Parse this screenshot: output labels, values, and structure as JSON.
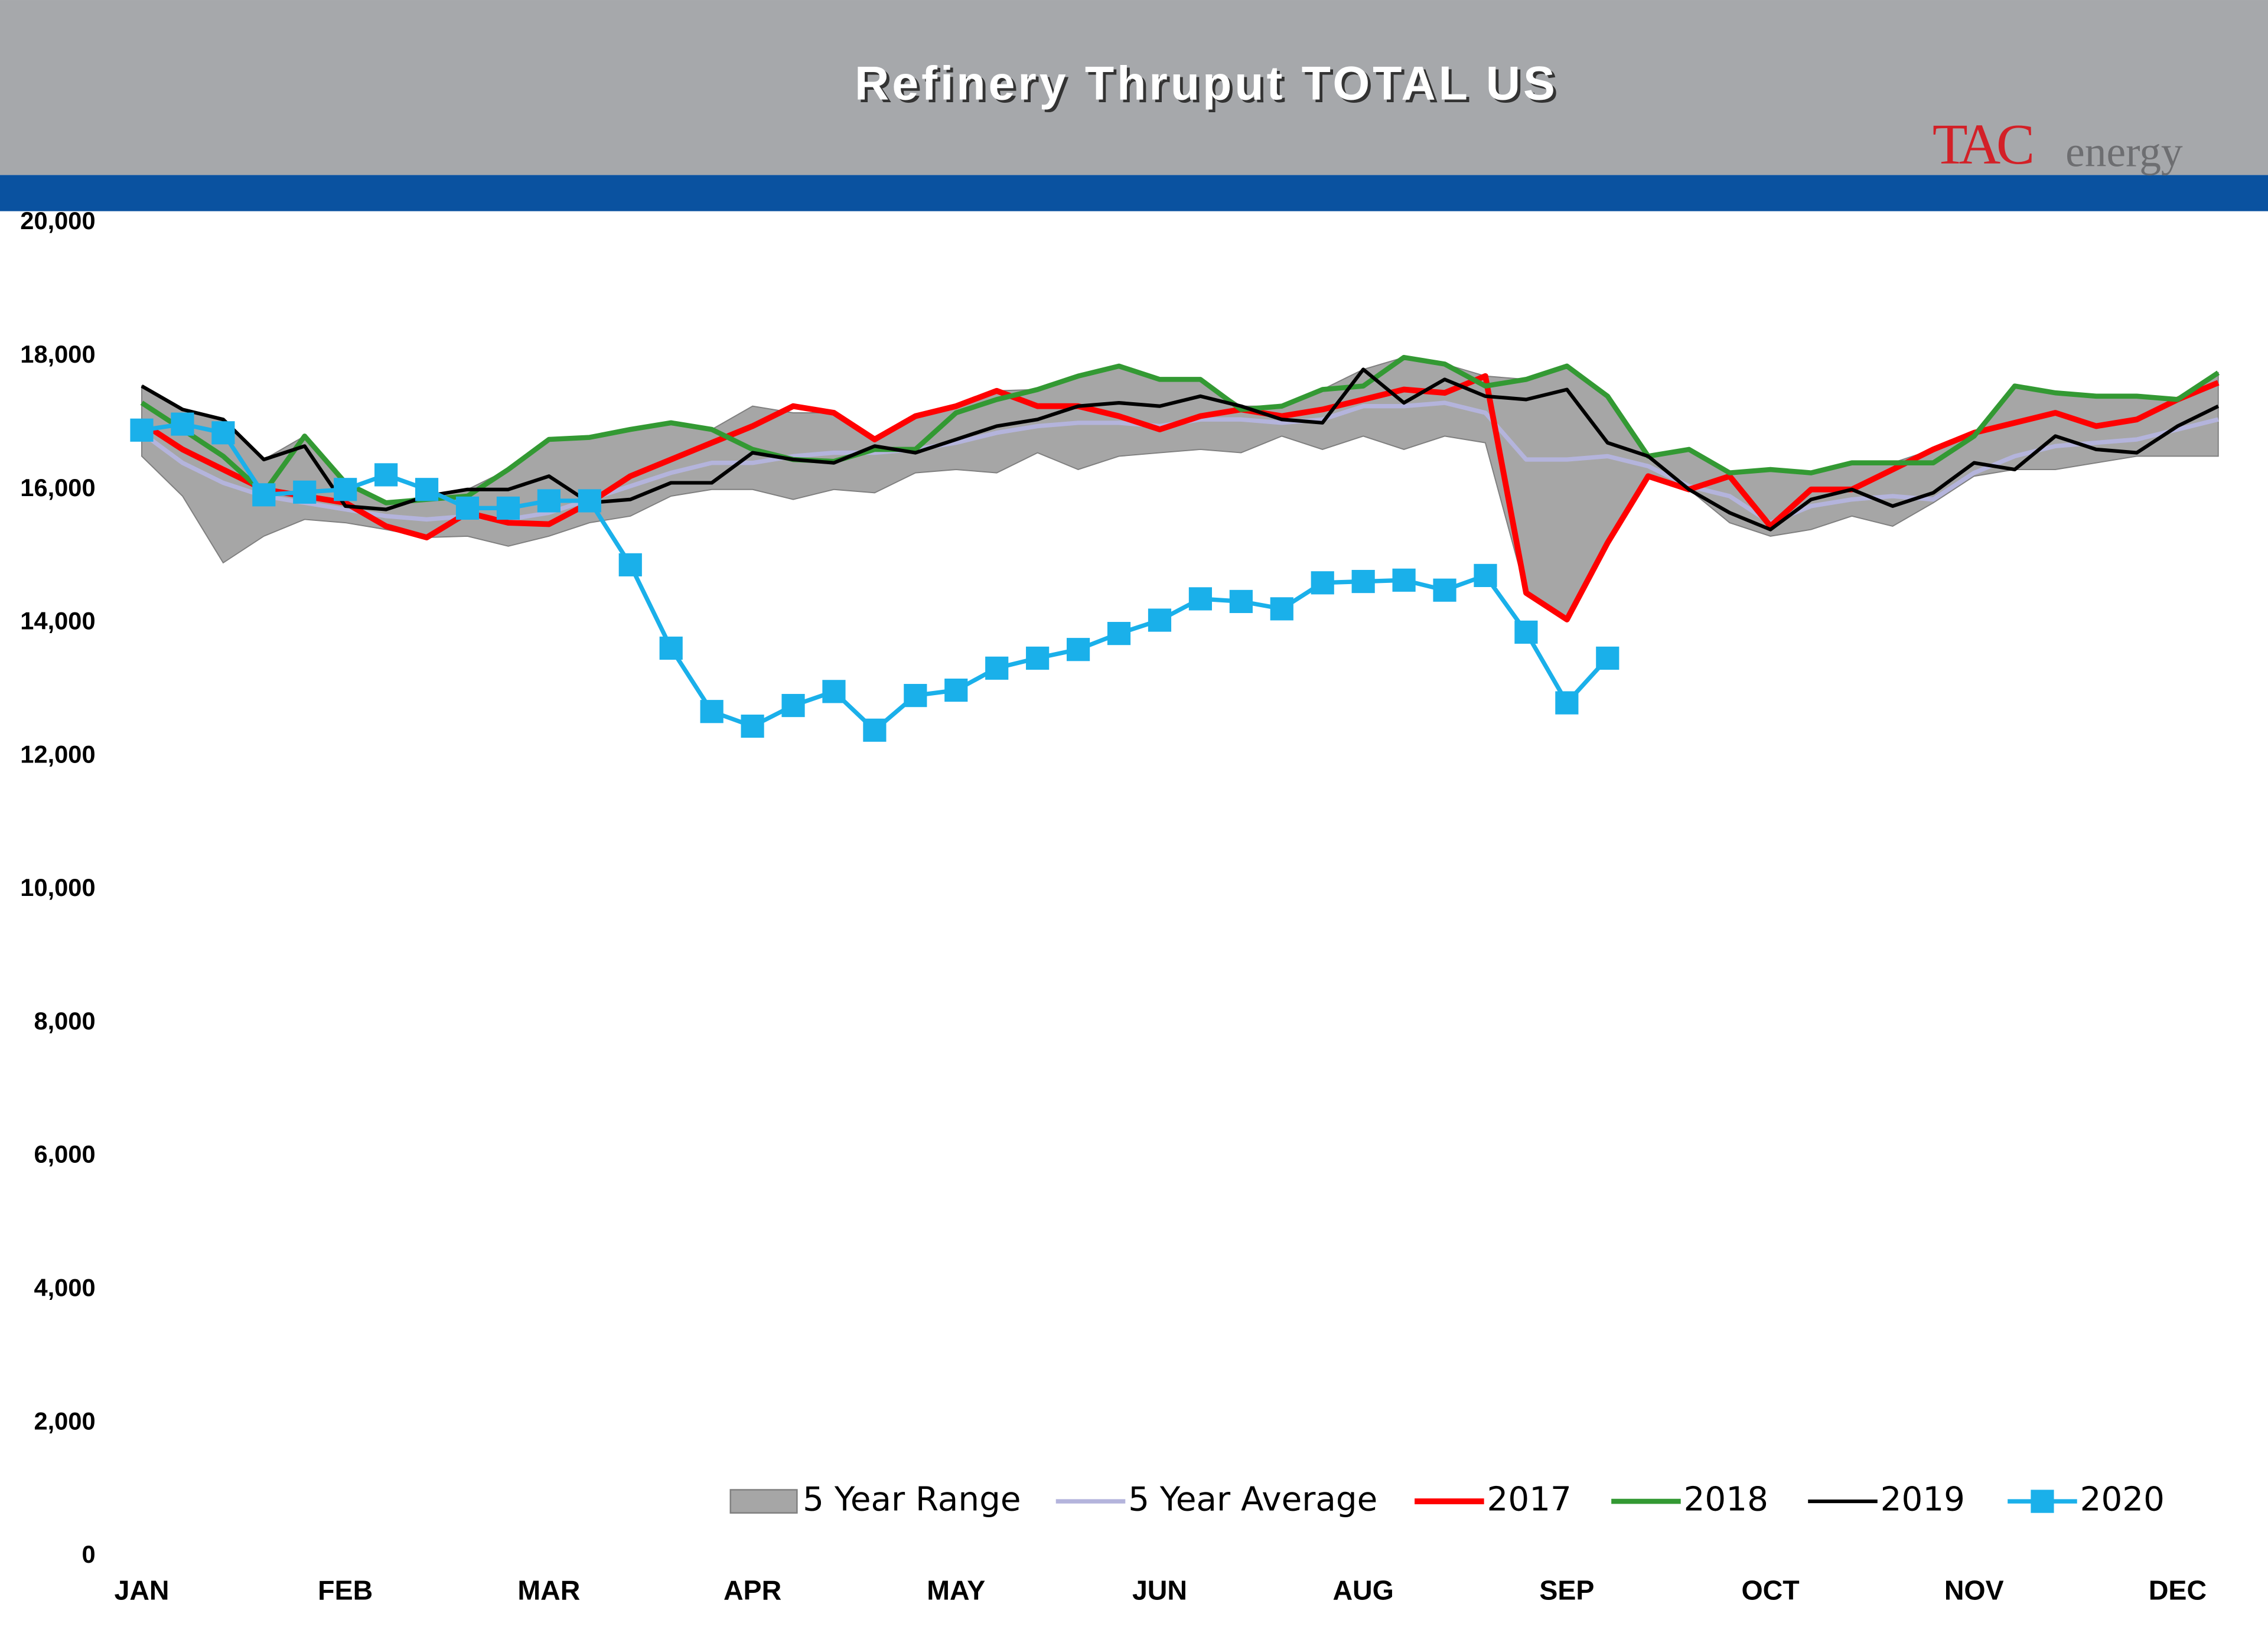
{
  "chart_data": {
    "type": "line",
    "title": "Refinery Thruput TOTAL US",
    "logo": [
      "TAC",
      "energy"
    ],
    "categories": [
      "JAN",
      null,
      null,
      null,
      null,
      "FEB",
      null,
      null,
      null,
      null,
      "MAR",
      null,
      null,
      null,
      null,
      "APR",
      null,
      null,
      null,
      null,
      "MAY",
      null,
      null,
      null,
      null,
      "JUN",
      null,
      null,
      null,
      null,
      "AUG",
      null,
      null,
      null,
      null,
      "SEP",
      null,
      null,
      null,
      null,
      "OCT",
      null,
      null,
      null,
      null,
      "NOV",
      null,
      null,
      null,
      null,
      "DEC",
      null
    ],
    "ylim": [
      0,
      20000
    ],
    "yticks": [
      0,
      {
        "value": 2000,
        "label": "2,000"
      },
      {
        "value": 4000,
        "label": "4,000"
      },
      {
        "value": 6000,
        "label": "6,000"
      },
      {
        "value": 8000,
        "label": "8,000"
      },
      {
        "value": 10000,
        "label": "10,000"
      },
      {
        "value": 12000,
        "label": "12,000"
      },
      {
        "value": 14000,
        "label": "14,000"
      },
      {
        "value": 16000,
        "label": "16,000"
      },
      {
        "value": 18000,
        "label": "18,000"
      },
      {
        "value": 20000,
        "label": "20,000"
      }
    ],
    "grid": false,
    "legend": "bottom-right",
    "series": [
      {
        "name": "5 Year Range",
        "color": "#a6a6a6",
        "low": [
          16500,
          15900,
          14900,
          15300,
          15550,
          15500,
          15400,
          15280,
          15300,
          15150,
          15300,
          15500,
          15600,
          15900,
          16000,
          16000,
          15850,
          16000,
          15950,
          16250,
          16300,
          16250,
          16550,
          16300,
          16500,
          16550,
          16600,
          16550,
          16800,
          16600,
          16800,
          16600,
          16800,
          16700,
          14450,
          14050,
          15200,
          16200,
          16000,
          15500,
          15300,
          15400,
          15600,
          15450,
          15800,
          16200,
          16300,
          16300,
          16400,
          16500,
          16500,
          16500
        ],
        "high": [
          17550,
          17200,
          17050,
          16450,
          16800,
          16100,
          15800,
          15900,
          16000,
          16300,
          16750,
          16780,
          16900,
          17000,
          16900,
          17250,
          17150,
          17150,
          16750,
          17100,
          17250,
          17480,
          17500,
          17700,
          17850,
          17650,
          17650,
          17250,
          17250,
          17500,
          17800,
          17980,
          17880,
          17700,
          17650,
          17850,
          17400,
          16500,
          16600,
          16250,
          16300,
          16250,
          16400,
          16400,
          16600,
          16850,
          17550,
          17450,
          17400,
          17400,
          17350,
          17750
        ]
      },
      {
        "name": "5 Year Average",
        "color": "#b4b4dc",
        "values": [
          16850,
          16400,
          16100,
          15900,
          15800,
          15700,
          15600,
          15550,
          15600,
          15550,
          15650,
          15850,
          16050,
          16250,
          16400,
          16400,
          16500,
          16550,
          16550,
          16600,
          16700,
          16850,
          16950,
          17000,
          17000,
          16950,
          17050,
          17050,
          17000,
          17050,
          17250,
          17250,
          17300,
          17150,
          16450,
          16450,
          16500,
          16350,
          16050,
          15900,
          15500,
          15750,
          15850,
          15900,
          15850,
          16250,
          16500,
          16650,
          16700,
          16750,
          16900,
          17050
        ]
      },
      {
        "name": "2017",
        "color": "#ff0000",
        "values": [
          17000,
          16600,
          16300,
          16000,
          15900,
          15800,
          15450,
          15280,
          15650,
          15500,
          15480,
          15800,
          16200,
          16450,
          16700,
          16950,
          17250,
          17150,
          16750,
          17100,
          17250,
          17480,
          17250,
          17250,
          17100,
          16900,
          17100,
          17200,
          17100,
          17200,
          17350,
          17500,
          17450,
          17700,
          14450,
          14050,
          15200,
          16200,
          16000,
          16200,
          15450,
          16000,
          16000,
          16300,
          16600,
          16850,
          17000,
          17150,
          16950,
          17050,
          17350,
          17600
        ]
      },
      {
        "name": "2018",
        "color": "#339933",
        "values": [
          17300,
          16900,
          16500,
          15950,
          16800,
          16100,
          15800,
          15850,
          15900,
          16300,
          16750,
          16780,
          16900,
          17000,
          16900,
          16600,
          16450,
          16420,
          16600,
          16600,
          17150,
          17350,
          17500,
          17700,
          17850,
          17650,
          17650,
          17200,
          17250,
          17500,
          17550,
          17980,
          17880,
          17550,
          17650,
          17850,
          17400,
          16500,
          16600,
          16250,
          16300,
          16250,
          16400,
          16400,
          16400,
          16800,
          17550,
          17450,
          17400,
          17400,
          17350,
          17750
        ]
      },
      {
        "name": "2019",
        "color": "#000000",
        "values": [
          17550,
          17200,
          17050,
          16450,
          16650,
          15750,
          15700,
          15900,
          16000,
          16000,
          16200,
          15800,
          15850,
          16100,
          16100,
          16550,
          16450,
          16400,
          16650,
          16550,
          16750,
          16950,
          17050,
          17250,
          17300,
          17250,
          17400,
          17250,
          17050,
          17000,
          17800,
          17300,
          17650,
          17400,
          17350,
          17500,
          16700,
          16500,
          16000,
          15650,
          15400,
          15850,
          16000,
          15750,
          15950,
          16400,
          16300,
          16800,
          16600,
          16550,
          16950,
          17250
        ]
      },
      {
        "name": "2020",
        "color": "#1ab0ea",
        "values": [
          16890,
          16980,
          16850,
          15920,
          15960,
          16000,
          16220,
          16000,
          15720,
          15720,
          15830,
          15830,
          14870,
          13620,
          12670,
          12450,
          12760,
          12970,
          12390,
          12910,
          12990,
          13320,
          13470,
          13600,
          13840,
          14040,
          14360,
          14320,
          14210,
          14600,
          14620,
          14640,
          14490,
          14710,
          13860,
          12800,
          13470,
          null,
          null,
          null,
          null,
          null,
          null,
          null,
          null,
          null,
          null,
          null,
          null,
          null,
          null,
          null
        ]
      }
    ]
  }
}
